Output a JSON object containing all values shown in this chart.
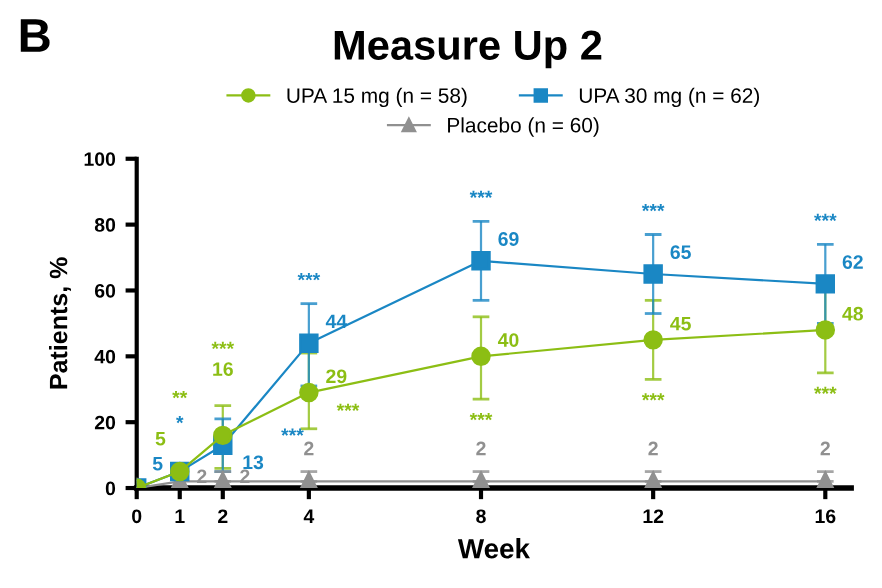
{
  "chart_data": {
    "type": "line",
    "title": "Measure Up 2",
    "xlabel": "Week",
    "ylabel": "Patients, %",
    "x": [
      0,
      1,
      2,
      4,
      8,
      12,
      16
    ],
    "series": [
      {
        "name": "UPA 15 mg (n = 58)",
        "color": "#8cbe14",
        "marker": "circle",
        "values": [
          0,
          5,
          16,
          29,
          40,
          45,
          48
        ],
        "errors": [
          null,
          null,
          [
            6,
            25
          ],
          [
            18,
            41
          ],
          [
            27,
            52
          ],
          [
            33,
            57
          ],
          [
            35,
            61
          ]
        ],
        "value_labels": [
          null,
          "5",
          "16",
          "29",
          "40",
          "45",
          "48"
        ]
      },
      {
        "name": "UPA 30 mg (n = 62)",
        "color": "#1a87c4",
        "marker": "square",
        "values": [
          0,
          5,
          13,
          44,
          69,
          65,
          62
        ],
        "errors": [
          null,
          null,
          [
            5,
            21
          ],
          [
            31,
            56
          ],
          [
            57,
            81
          ],
          [
            53,
            77
          ],
          [
            50,
            74
          ]
        ],
        "value_labels": [
          null,
          "5",
          "13",
          "44",
          "69",
          "65",
          "62"
        ]
      },
      {
        "name": "Placebo (n = 60)",
        "color": "#909090",
        "marker": "triangle",
        "values": [
          0,
          2,
          2,
          2,
          2,
          2,
          2
        ],
        "errors": [
          null,
          null,
          [
            2,
            5
          ],
          [
            2,
            5
          ],
          [
            2,
            5
          ],
          [
            2,
            5
          ],
          [
            2,
            5
          ]
        ],
        "value_labels": [
          null,
          "2",
          "2",
          "2",
          "2",
          "2",
          "2"
        ]
      }
    ],
    "xlim": [
      0,
      16.6
    ],
    "xticks": [
      0,
      1,
      2,
      4,
      8,
      12,
      16
    ],
    "ylim": [
      0,
      100
    ],
    "yticks": [
      0,
      20,
      40,
      60,
      80,
      100
    ],
    "grid": false,
    "legend": "top",
    "annotations": [
      "B",
      "**",
      "***",
      "***",
      "***",
      "***",
      "***",
      "*",
      "***",
      "***",
      "***",
      "***",
      "***"
    ]
  }
}
